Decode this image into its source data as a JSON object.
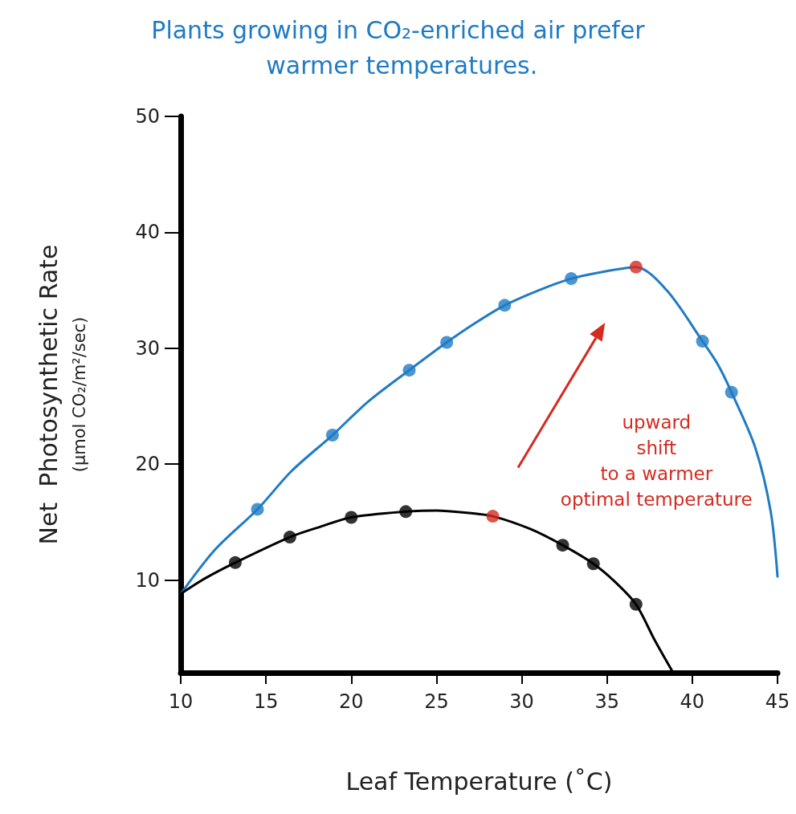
{
  "chart_data": {
    "type": "line",
    "title": "Plants growing in CO₂-enriched air prefer warmer temperatures.",
    "xlabel": "Leaf Temperature (˚C)",
    "ylabel": "Net  Photosynthetic Rate\n(μmol CO₂/m²/sec)",
    "xlim": [
      10,
      45
    ],
    "xticks": [
      10,
      15,
      20,
      25,
      30,
      35,
      40,
      45
    ],
    "ylim": [
      2,
      50
    ],
    "yticks": [
      10,
      20,
      30,
      40,
      50
    ],
    "grid": false,
    "marker": "circle",
    "annotations": [
      "upward\nshift\nto a warmer\noptimal temperature"
    ],
    "series": [
      {
        "marker": "none",
        "color": "#1f7bc4",
        "x": [
          10,
          12,
          14.5,
          16.5,
          18.9,
          21,
          23.4,
          25.6,
          27.3,
          29.0,
          31,
          32.9,
          34.8,
          36.7,
          38.5,
          40.6,
          41.5,
          42.3,
          43.7,
          44.6,
          45
        ],
        "values": [
          8.8,
          12.6,
          16.1,
          19.4,
          22.5,
          25.4,
          28.1,
          30.5,
          32.2,
          33.7,
          35.0,
          36.0,
          36.6,
          37.0,
          35.0,
          30.6,
          28.6,
          26.2,
          21.4,
          15.9,
          10.3
        ]
      },
      {
        "marker": "none",
        "color": "#000000",
        "x": [
          10,
          11.5,
          13.2,
          16.4,
          18.2,
          20.0,
          23.2,
          25,
          26.8,
          28.3,
          30.5,
          32.4,
          34.2,
          35.5,
          36.7,
          37.8,
          38.8
        ],
        "values": [
          8.8,
          10.2,
          11.5,
          13.7,
          14.6,
          15.4,
          15.9,
          16.0,
          15.8,
          15.5,
          14.4,
          13.0,
          11.4,
          9.8,
          7.9,
          4.8,
          2.2
        ]
      },
      {
        "type": "scatter",
        "colors": [
          "#1f7bc4",
          "#1f7bc4",
          "#1f7bc4",
          "#1f7bc4",
          "#1f7bc4",
          "#1f7bc4",
          "#d42a20",
          "#1f7bc4",
          "#1f7bc4"
        ],
        "x": [
          14.5,
          18.9,
          23.4,
          25.6,
          29.0,
          32.9,
          36.7,
          40.6,
          42.3
        ],
        "values": [
          16.1,
          22.5,
          28.1,
          30.5,
          33.7,
          36.0,
          37.0,
          30.6,
          26.2
        ]
      },
      {
        "type": "scatter",
        "colors": [
          "#000000",
          "#000000",
          "#000000",
          "#000000",
          "#d42a20",
          "#000000",
          "#000000",
          "#000000"
        ],
        "x": [
          13.2,
          16.4,
          20.0,
          23.2,
          28.3,
          32.4,
          34.2,
          36.7
        ],
        "values": [
          11.5,
          13.7,
          15.4,
          15.9,
          15.5,
          13.0,
          11.4,
          7.9
        ]
      }
    ]
  }
}
